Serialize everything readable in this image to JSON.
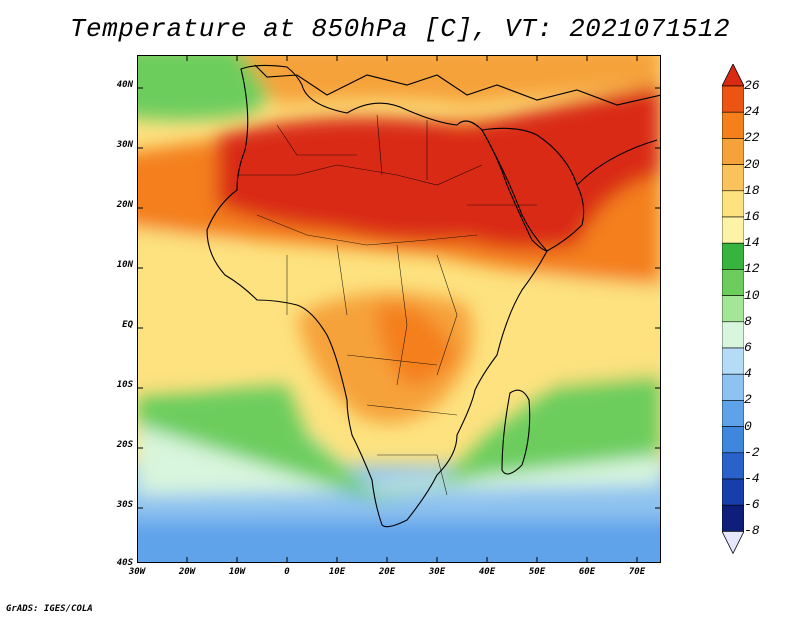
{
  "title": "Temperature at 850hPa [C], VT: 2021071512",
  "credit": "GrADS: IGES/COLA",
  "lon_labels": [
    "30W",
    "20W",
    "10W",
    "0",
    "10E",
    "20E",
    "30E",
    "40E",
    "50E",
    "60E",
    "70E"
  ],
  "lat_labels": [
    "40N",
    "30N",
    "20N",
    "10N",
    "EQ",
    "10S",
    "20S",
    "30S",
    "40S"
  ],
  "colorbar": {
    "levels": [
      "26",
      "24",
      "22",
      "20",
      "18",
      "16",
      "14",
      "12",
      "10",
      "8",
      "6",
      "4",
      "2",
      "0",
      "-2",
      "-4",
      "-6",
      "-8"
    ],
    "colors": [
      "#d92b12",
      "#ec5413",
      "#f47f1b",
      "#f6a23a",
      "#f9c25a",
      "#fde27f",
      "#fdf3a6",
      "#37b43d",
      "#6ccd5d",
      "#a4e698",
      "#d8f5dd",
      "#b5dcf6",
      "#8ec2f0",
      "#5ea3ea",
      "#3f86dd",
      "#2a62cb",
      "#173fab",
      "#0d1f7a"
    ]
  },
  "map_colors": {
    "hot": "#d92b12",
    "warm": "#f6a23a",
    "mild": "#fde27f",
    "cool": "#a4e698",
    "cold": "#8ec2f0"
  }
}
